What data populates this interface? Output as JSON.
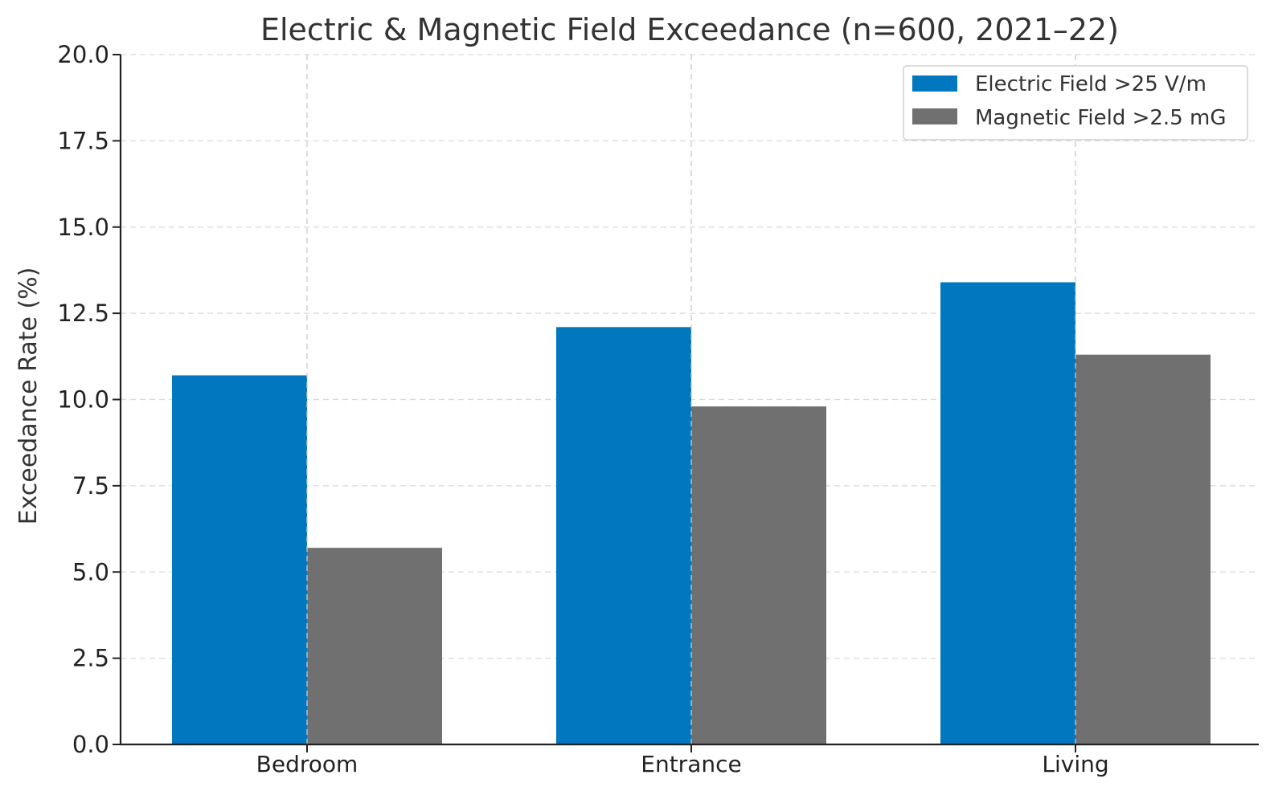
{
  "chart_data": {
    "type": "bar",
    "title": "Electric & Magnetic Field Exceedance (n=600, 2021–22)",
    "xlabel": "",
    "ylabel": "Exceedance Rate (%)",
    "categories": [
      "Bedroom",
      "Entrance",
      "Living"
    ],
    "series": [
      {
        "name": "Electric Field >25 V/m",
        "color": "#0077bf",
        "values": [
          10.7,
          12.1,
          13.4
        ]
      },
      {
        "name": "Magnetic Field >2.5 mG",
        "color": "#707070",
        "values": [
          5.7,
          9.8,
          11.3
        ]
      }
    ],
    "ylim": [
      0,
      20
    ],
    "yticks": [
      "0.0",
      "2.5",
      "5.0",
      "7.5",
      "10.0",
      "12.5",
      "15.0",
      "17.5",
      "20.0"
    ],
    "ytick_values": [
      0,
      2.5,
      5,
      7.5,
      10,
      12.5,
      15,
      17.5,
      20
    ],
    "grid": true,
    "legend_position": "top-right"
  }
}
